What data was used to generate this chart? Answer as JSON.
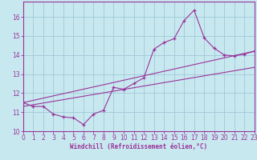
{
  "background_color": "#c8e8f0",
  "grid_color": "#a0c8d8",
  "line_color": "#993399",
  "xlim": [
    0,
    23
  ],
  "ylim": [
    10,
    16.8
  ],
  "xticks": [
    0,
    1,
    2,
    3,
    4,
    5,
    6,
    7,
    8,
    9,
    10,
    11,
    12,
    13,
    14,
    15,
    16,
    17,
    18,
    19,
    20,
    21,
    22,
    23
  ],
  "yticks": [
    10,
    11,
    12,
    13,
    14,
    15,
    16
  ],
  "xlabel": "Windchill (Refroidissement éolien,°C)",
  "main_x": [
    0,
    1,
    2,
    3,
    4,
    5,
    6,
    7,
    8,
    9,
    10,
    11,
    12,
    13,
    14,
    15,
    16,
    17,
    18,
    19,
    20,
    21,
    22,
    23
  ],
  "main_y": [
    11.5,
    11.3,
    11.3,
    10.9,
    10.75,
    10.7,
    10.35,
    10.9,
    11.1,
    12.3,
    12.2,
    12.5,
    12.8,
    14.3,
    14.65,
    14.85,
    15.8,
    16.35,
    14.9,
    14.35,
    14.0,
    13.95,
    14.05,
    14.2
  ],
  "trend1_x": [
    0,
    23
  ],
  "trend1_y": [
    11.5,
    14.2
  ],
  "trend2_x": [
    0,
    23
  ],
  "trend2_y": [
    11.3,
    13.35
  ]
}
